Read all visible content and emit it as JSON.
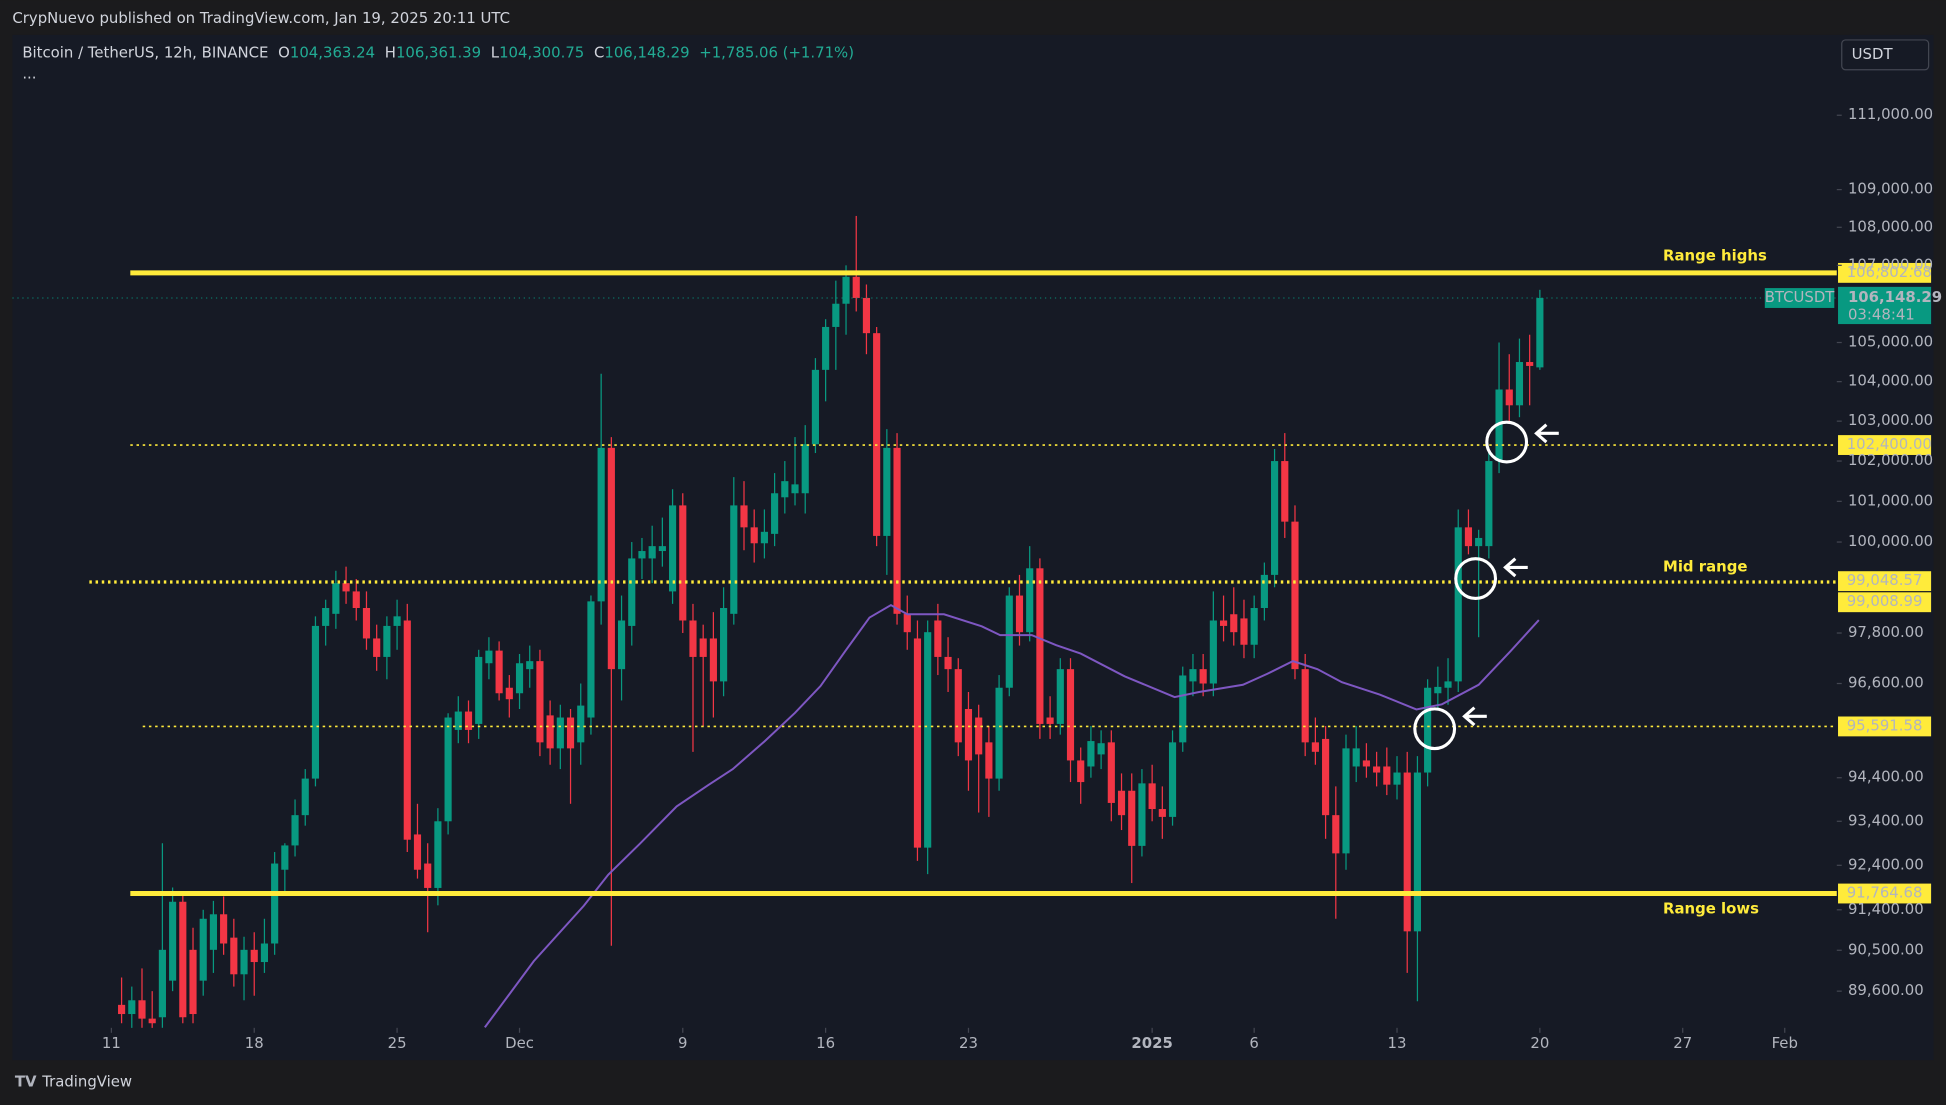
{
  "header": {
    "title": "CrypNuevo published on TradingView.com, Jan 19, 2025 20:11 UTC"
  },
  "footer": {
    "brand": "TradingView"
  },
  "toolbar": {
    "currency": "USDT",
    "more": "..."
  },
  "chart_data": {
    "type": "candlestick",
    "legend": {
      "symbol": "Bitcoin / TetherUS, 12h, BINANCE",
      "fields": [
        {
          "key": "O",
          "value": "104,363.24"
        },
        {
          "key": "H",
          "value": "106,361.39"
        },
        {
          "key": "L",
          "value": "104,300.75"
        },
        {
          "key": "C",
          "value": "106,148.29"
        }
      ],
      "change": "+1,785.06 (+1.71%)"
    },
    "up_color": "#089981",
    "down_color": "#f23645",
    "log_scale": true,
    "ylim": [
      88800,
      113200
    ],
    "yticks": [
      {
        "value": 111000,
        "label": "111,000.00"
      },
      {
        "value": 109000,
        "label": "109,000.00"
      },
      {
        "value": 108000,
        "label": "108,000.00"
      },
      {
        "value": 107000,
        "label": "107,000.00"
      },
      {
        "value": 105000,
        "label": "105,000.00"
      },
      {
        "value": 104000,
        "label": "104,000.00"
      },
      {
        "value": 103000,
        "label": "103,000.00"
      },
      {
        "value": 102000,
        "label": "102,000.00"
      },
      {
        "value": 101000,
        "label": "101,000.00"
      },
      {
        "value": 100000,
        "label": "100,000.00"
      },
      {
        "value": 97800,
        "label": "97,800.00"
      },
      {
        "value": 96600,
        "label": "96,600.00"
      },
      {
        "value": 94400,
        "label": "94,400.00"
      },
      {
        "value": 93400,
        "label": "93,400.00"
      },
      {
        "value": 92400,
        "label": "92,400.00"
      },
      {
        "value": 91400,
        "label": "91,400.00"
      },
      {
        "value": 90500,
        "label": "90,500.00"
      },
      {
        "value": 89600,
        "label": "89,600.00"
      }
    ],
    "xlim": [
      -10.7,
      168.1
    ],
    "xticks": [
      {
        "value": -1,
        "label": "11"
      },
      {
        "value": 13,
        "label": "18"
      },
      {
        "value": 27,
        "label": "25"
      },
      {
        "value": 39,
        "label": "Dec"
      },
      {
        "value": 55,
        "label": "9"
      },
      {
        "value": 69,
        "label": "16"
      },
      {
        "value": 83,
        "label": "23"
      },
      {
        "value": 101,
        "label": "2025"
      },
      {
        "value": 111,
        "label": "6"
      },
      {
        "value": 125,
        "label": "13"
      },
      {
        "value": 139,
        "label": "20"
      },
      {
        "value": 153,
        "label": "27"
      },
      {
        "value": 163,
        "label": "Feb"
      }
    ],
    "ohlc": [
      [
        89300,
        89900,
        88900,
        89100
      ],
      [
        89100,
        89700,
        88600,
        89400
      ],
      [
        89400,
        90100,
        88800,
        89000
      ],
      [
        89000,
        89600,
        88500,
        88900
      ],
      [
        89030,
        92900,
        88800,
        90510
      ],
      [
        89830,
        91900,
        89600,
        91580
      ],
      [
        91580,
        91800,
        88900,
        89030
      ],
      [
        90510,
        91000,
        88900,
        89100
      ],
      [
        89830,
        91400,
        89500,
        91200
      ],
      [
        90510,
        91600,
        90000,
        91300
      ],
      [
        91300,
        91700,
        90400,
        90650
      ],
      [
        90780,
        91200,
        89700,
        89970
      ],
      [
        89970,
        90800,
        89400,
        90510
      ],
      [
        90510,
        90900,
        89500,
        90240
      ],
      [
        90240,
        91200,
        90000,
        90650
      ],
      [
        90650,
        92700,
        90400,
        92440
      ],
      [
        92300,
        92900,
        91800,
        92850
      ],
      [
        92850,
        93900,
        92600,
        93540
      ],
      [
        93540,
        94600,
        93300,
        94380
      ],
      [
        94380,
        98200,
        94200,
        97970
      ],
      [
        97970,
        98600,
        97500,
        98400
      ],
      [
        98260,
        99300,
        97900,
        99000
      ],
      [
        99000,
        99400,
        98500,
        98800
      ],
      [
        98800,
        99100,
        98100,
        98400
      ],
      [
        98400,
        98800,
        97400,
        97670
      ],
      [
        97670,
        98000,
        96900,
        97230
      ],
      [
        97230,
        98200,
        96700,
        97970
      ],
      [
        97970,
        98600,
        97400,
        98200
      ],
      [
        98100,
        98500,
        92700,
        92980
      ],
      [
        93100,
        93800,
        92100,
        92300
      ],
      [
        92440,
        92900,
        90900,
        91890
      ],
      [
        91890,
        93700,
        91500,
        93400
      ],
      [
        93400,
        95900,
        93100,
        95800
      ],
      [
        95510,
        96300,
        95200,
        95940
      ],
      [
        95940,
        96200,
        95200,
        95510
      ],
      [
        95650,
        97400,
        95300,
        97230
      ],
      [
        97080,
        97700,
        96700,
        97380
      ],
      [
        97380,
        97600,
        96200,
        96370
      ],
      [
        96500,
        96800,
        95800,
        96230
      ],
      [
        96370,
        97300,
        96000,
        97080
      ],
      [
        96940,
        97500,
        96500,
        97130
      ],
      [
        97130,
        97400,
        94900,
        95220
      ],
      [
        95850,
        96200,
        94700,
        95080
      ],
      [
        95080,
        96100,
        94600,
        95800
      ],
      [
        95800,
        96000,
        93800,
        95080
      ],
      [
        95220,
        96600,
        94700,
        96080
      ],
      [
        95800,
        98700,
        95400,
        98560
      ],
      [
        98560,
        104200,
        98000,
        102330
      ],
      [
        102330,
        102600,
        90600,
        96940
      ],
      [
        96940,
        98700,
        96200,
        98100
      ],
      [
        97970,
        100000,
        97500,
        99600
      ],
      [
        99600,
        100100,
        99100,
        99780
      ],
      [
        99600,
        100400,
        99000,
        99900
      ],
      [
        99780,
        100600,
        99400,
        99900
      ],
      [
        98800,
        101300,
        98500,
        100900
      ],
      [
        100900,
        101200,
        97800,
        98100
      ],
      [
        98100,
        98500,
        95000,
        97230
      ],
      [
        97670,
        98000,
        95600,
        97230
      ],
      [
        97670,
        98300,
        95800,
        96650
      ],
      [
        96650,
        98900,
        96300,
        98400
      ],
      [
        98260,
        101600,
        98000,
        100900
      ],
      [
        100900,
        101500,
        99800,
        100360
      ],
      [
        100360,
        100800,
        99500,
        99970
      ],
      [
        99970,
        100800,
        99600,
        100250
      ],
      [
        100200,
        101700,
        99900,
        101200
      ],
      [
        101100,
        102000,
        100700,
        101500
      ],
      [
        101200,
        102600,
        100900,
        101420
      ],
      [
        101200,
        102900,
        100700,
        102420
      ],
      [
        102420,
        104600,
        102200,
        104300
      ],
      [
        104300,
        105600,
        103500,
        105400
      ],
      [
        105400,
        106600,
        104300,
        106000
      ],
      [
        106000,
        107000,
        105200,
        106700
      ],
      [
        106700,
        108300,
        105800,
        106150
      ],
      [
        106150,
        106500,
        104700,
        105240
      ],
      [
        105240,
        105400,
        99900,
        100150
      ],
      [
        100150,
        102800,
        99200,
        102330
      ],
      [
        102330,
        102700,
        98000,
        98260
      ],
      [
        98260,
        98700,
        97400,
        97820
      ],
      [
        97670,
        98100,
        92500,
        92800
      ],
      [
        92800,
        98100,
        92200,
        97820
      ],
      [
        98100,
        98500,
        96800,
        97230
      ],
      [
        97230,
        97700,
        96400,
        96940
      ],
      [
        96940,
        97200,
        94900,
        95220
      ],
      [
        96000,
        96400,
        94100,
        94800
      ],
      [
        95800,
        96100,
        93600,
        94940
      ],
      [
        95220,
        95600,
        93500,
        94380
      ],
      [
        94380,
        96800,
        94100,
        96500
      ],
      [
        96500,
        98900,
        96300,
        98700
      ],
      [
        98700,
        99200,
        97500,
        97820
      ],
      [
        97820,
        99900,
        97600,
        99360
      ],
      [
        99360,
        99600,
        95300,
        95650
      ],
      [
        95800,
        96300,
        95300,
        95650
      ],
      [
        95650,
        97200,
        95400,
        96940
      ],
      [
        96940,
        97200,
        94300,
        94800
      ],
      [
        94800,
        95100,
        93800,
        94300
      ],
      [
        94660,
        95600,
        94400,
        95250
      ],
      [
        94940,
        95500,
        94600,
        95200
      ],
      [
        95220,
        95500,
        93400,
        93820
      ],
      [
        94100,
        94500,
        93200,
        93540
      ],
      [
        94100,
        94500,
        92000,
        92840
      ],
      [
        92840,
        94600,
        92600,
        94270
      ],
      [
        94270,
        94700,
        93400,
        93680
      ],
      [
        93680,
        94200,
        93000,
        93500
      ],
      [
        93500,
        95500,
        93300,
        95220
      ],
      [
        95220,
        97000,
        95000,
        96790
      ],
      [
        96650,
        97300,
        96300,
        96940
      ],
      [
        96940,
        97300,
        96300,
        96600
      ],
      [
        96600,
        98800,
        96300,
        98100
      ],
      [
        98100,
        98700,
        97600,
        97970
      ],
      [
        98250,
        98900,
        97500,
        97820
      ],
      [
        98150,
        98600,
        97200,
        97520
      ],
      [
        97520,
        98700,
        97200,
        98400
      ],
      [
        98400,
        99500,
        98100,
        99200
      ],
      [
        99200,
        102300,
        98900,
        102000
      ],
      [
        102000,
        102700,
        100100,
        100500
      ],
      [
        100500,
        100900,
        96700,
        96940
      ],
      [
        96940,
        97300,
        94900,
        95220
      ],
      [
        95220,
        95800,
        94700,
        95000
      ],
      [
        95300,
        95600,
        93000,
        93540
      ],
      [
        93540,
        94200,
        91200,
        92670
      ],
      [
        92670,
        95400,
        92300,
        95080
      ],
      [
        94660,
        95600,
        94300,
        95080
      ],
      [
        94800,
        95200,
        94400,
        94660
      ],
      [
        94660,
        95000,
        94200,
        94520
      ],
      [
        94660,
        95100,
        94000,
        94240
      ],
      [
        94240,
        94900,
        93900,
        94520
      ],
      [
        94520,
        95000,
        90000,
        90920
      ],
      [
        90920,
        94900,
        89380,
        94520
      ],
      [
        94520,
        96700,
        94200,
        96500
      ],
      [
        96370,
        97000,
        96000,
        96520
      ],
      [
        96500,
        97200,
        96100,
        96650
      ],
      [
        96650,
        100800,
        96400,
        100360
      ],
      [
        100360,
        100800,
        99700,
        99900
      ],
      [
        99900,
        100300,
        97700,
        100100
      ],
      [
        99900,
        102300,
        99600,
        102000
      ],
      [
        102000,
        105000,
        101700,
        103800
      ],
      [
        103800,
        104700,
        103000,
        103400
      ],
      [
        103400,
        105100,
        103100,
        104500
      ],
      [
        104500,
        105200,
        103400,
        104400
      ],
      [
        104363.24,
        106361.39,
        104300.75,
        106148.29
      ]
    ],
    "ma": {
      "color": "#7e57c2",
      "x": [
        35.6,
        40.4,
        45.3,
        47.7,
        50.8,
        54.4,
        57.5,
        59.9,
        63.0,
        66.0,
        68.5,
        70.9,
        73.3,
        75.4,
        77.0,
        80.6,
        84.3,
        86.1,
        89.2,
        91.6,
        94.0,
        98.3,
        103.2,
        105.6,
        109.9,
        112.3,
        114.8,
        117.2,
        119.6,
        123.3,
        126.9,
        129.4,
        133.0,
        136.1,
        138.9
      ],
      "values": [
        88810,
        90260,
        91490,
        92190,
        92890,
        93740,
        94230,
        94600,
        95240,
        95910,
        96540,
        97360,
        98170,
        98470,
        98250,
        98250,
        97960,
        97750,
        97750,
        97510,
        97310,
        96770,
        96280,
        96400,
        96570,
        96830,
        97130,
        96940,
        96630,
        96340,
        95990,
        96110,
        96570,
        97360,
        98110
      ]
    },
    "levels": [
      {
        "value": 106802.68,
        "label": "106,802.68",
        "style": "solid"
      },
      {
        "value": 102400,
        "label": "102,400.00",
        "style": "dotted"
      },
      {
        "value": 99048.57,
        "label": "99,048.57",
        "style": "dotted"
      },
      {
        "value": 99008.99,
        "label": "99,008.99",
        "style": "dotted"
      },
      {
        "value": 95591.58,
        "label": "95,591.58",
        "style": "dotted"
      },
      {
        "value": 91764.68,
        "label": "91,764.68",
        "style": "solid"
      }
    ],
    "level_color": "#ffeb3b",
    "annotations": [
      "Range highs",
      "Mid range",
      "Range lows"
    ],
    "last_price": {
      "ticker": "BTCUSDT",
      "value": 106148.29,
      "label": "106,148.29",
      "countdown": "03:48:41"
    }
  }
}
